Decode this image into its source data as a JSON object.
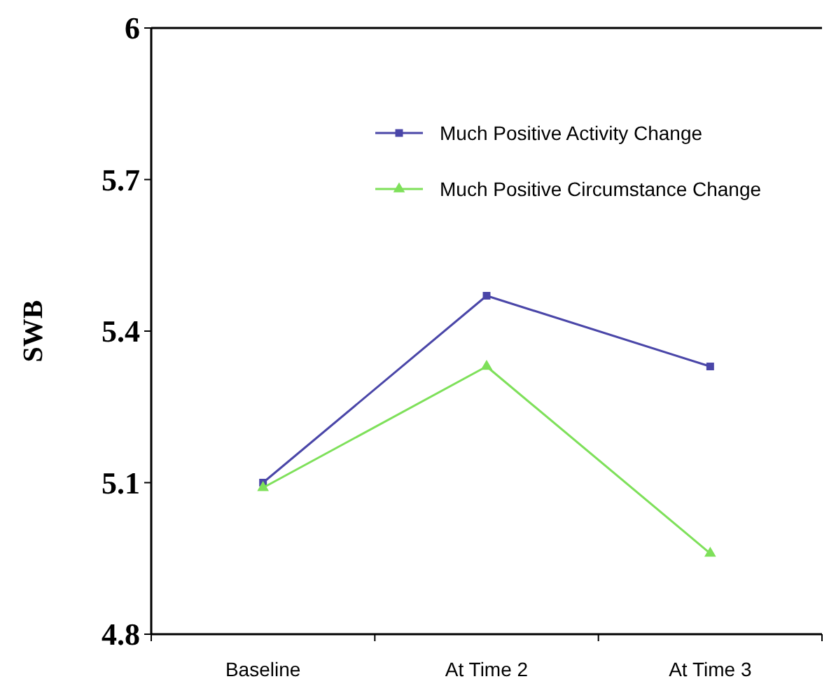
{
  "chart_data": {
    "type": "line",
    "ylabel": "SWB",
    "categories": [
      "Baseline",
      "At Time 2",
      "At Time 3"
    ],
    "series": [
      {
        "name": "Much Positive Activity Change",
        "color": "#4a46a8",
        "values": [
          5.1,
          5.47,
          5.33
        ],
        "marker": "square"
      },
      {
        "name": "Much Positive Circumstance Change",
        "color": "#7ee05a",
        "values": [
          5.09,
          5.33,
          4.96
        ],
        "marker": "triangle"
      }
    ],
    "ylim": [
      4.8,
      6
    ],
    "yticks": [
      {
        "value": 4.8,
        "label": "4.8"
      },
      {
        "value": 5.1,
        "label": "5.1"
      },
      {
        "value": 5.4,
        "label": "5.4"
      },
      {
        "value": 5.7,
        "label": "5.7"
      },
      {
        "value": 6,
        "label": "6"
      }
    ],
    "legend": "top right",
    "grid": false
  }
}
